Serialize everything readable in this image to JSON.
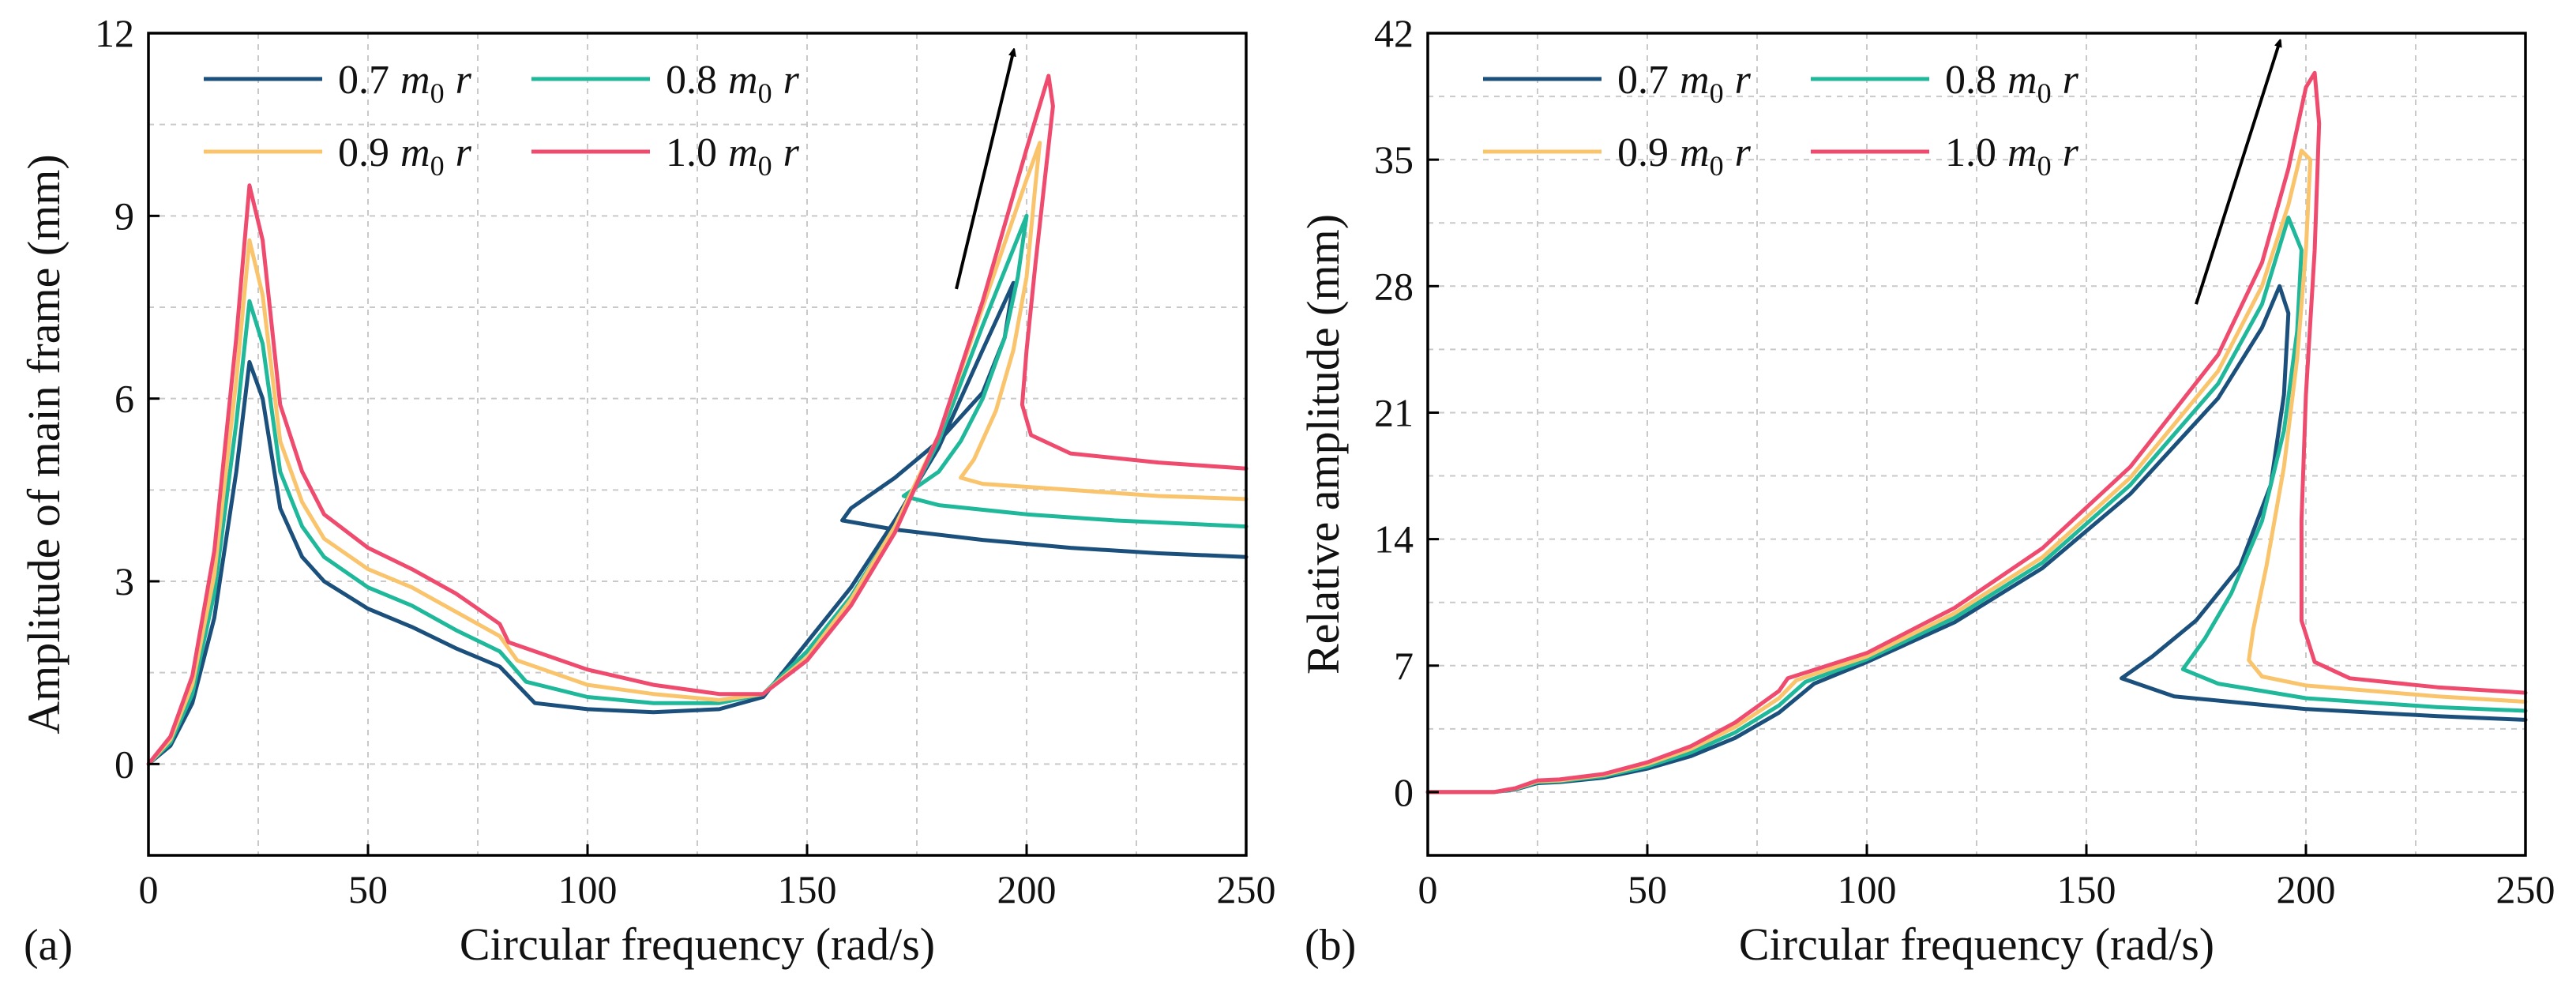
{
  "chart_data": [
    {
      "type": "line",
      "panel_label": "(a)",
      "xlabel": "Circular frequency (rad/s)",
      "ylabel": "Amplitude of main frame (mm)",
      "xlim": [
        0,
        250
      ],
      "ylim": [
        -1.5,
        12
      ],
      "xticks": [
        0,
        50,
        100,
        150,
        200,
        250
      ],
      "yticks": [
        0,
        3,
        6,
        9,
        12
      ],
      "grid": true,
      "legend": "top-left, 2 columns",
      "arrow": {
        "from": [
          184,
          7.8
        ],
        "to": [
          197,
          11.7
        ]
      },
      "series": [
        {
          "name": "0.7 m0 r",
          "coef": "0.7",
          "color": "#1b4f7c",
          "x": [
            0,
            5,
            10,
            15,
            20,
            23,
            26,
            30,
            35,
            40,
            50,
            60,
            70,
            80,
            88,
            100,
            115,
            130,
            140,
            150,
            160,
            170,
            180,
            190,
            197,
            195,
            190,
            180,
            170,
            160,
            158,
            170,
            190,
            210,
            230,
            250
          ],
          "y": [
            0,
            0.3,
            1.0,
            2.4,
            4.8,
            6.6,
            6.0,
            4.2,
            3.4,
            3.0,
            2.55,
            2.25,
            1.9,
            1.6,
            1.0,
            0.9,
            0.85,
            0.9,
            1.1,
            2.0,
            2.9,
            4.0,
            5.2,
            6.8,
            7.9,
            7.0,
            6.1,
            5.3,
            4.7,
            4.2,
            4.0,
            3.85,
            3.68,
            3.55,
            3.46,
            3.4
          ]
        },
        {
          "name": "0.8 m0 r",
          "coef": "0.8",
          "color": "#1fb89a",
          "x": [
            0,
            5,
            10,
            15,
            20,
            23,
            26,
            30,
            35,
            40,
            50,
            60,
            70,
            80,
            86,
            100,
            115,
            130,
            140,
            150,
            160,
            170,
            180,
            190,
            200,
            198,
            195,
            190,
            185,
            180,
            172,
            180,
            200,
            220,
            250
          ],
          "y": [
            0,
            0.35,
            1.15,
            2.8,
            5.6,
            7.6,
            6.9,
            4.8,
            3.9,
            3.4,
            2.9,
            2.6,
            2.2,
            1.85,
            1.35,
            1.1,
            1.0,
            1.0,
            1.15,
            1.85,
            2.75,
            3.9,
            5.3,
            7.2,
            9.0,
            8.0,
            7.0,
            6.0,
            5.3,
            4.8,
            4.4,
            4.25,
            4.1,
            4.0,
            3.9
          ]
        },
        {
          "name": "0.9 m0 r",
          "coef": "0.9",
          "color": "#f9c46b",
          "x": [
            0,
            5,
            10,
            15,
            20,
            23,
            26,
            30,
            35,
            40,
            50,
            60,
            70,
            80,
            84,
            100,
            115,
            130,
            140,
            150,
            160,
            170,
            180,
            190,
            200,
            203,
            202,
            200,
            197,
            193,
            188,
            185,
            190,
            210,
            230,
            250
          ],
          "y": [
            0,
            0.4,
            1.3,
            3.1,
            6.3,
            8.6,
            7.7,
            5.3,
            4.3,
            3.7,
            3.2,
            2.9,
            2.5,
            2.1,
            1.7,
            1.3,
            1.15,
            1.05,
            1.15,
            1.75,
            2.7,
            3.9,
            5.4,
            7.5,
            9.6,
            10.2,
            9.5,
            8.0,
            6.8,
            5.8,
            5.0,
            4.7,
            4.6,
            4.5,
            4.4,
            4.35
          ]
        },
        {
          "name": "1.0 m0 r",
          "coef": "1.0",
          "color": "#ef4b6e",
          "x": [
            0,
            5,
            10,
            15,
            20,
            23,
            26,
            30,
            35,
            40,
            50,
            60,
            70,
            80,
            82,
            100,
            115,
            130,
            140,
            150,
            160,
            170,
            180,
            190,
            200,
            205,
            206,
            204,
            202,
            200,
            199,
            201,
            210,
            230,
            250
          ],
          "y": [
            0,
            0.45,
            1.45,
            3.5,
            7.0,
            9.5,
            8.6,
            5.9,
            4.8,
            4.1,
            3.55,
            3.2,
            2.8,
            2.3,
            2.0,
            1.55,
            1.3,
            1.15,
            1.15,
            1.7,
            2.6,
            3.8,
            5.4,
            7.6,
            10.1,
            11.3,
            10.8,
            9.5,
            8.2,
            6.8,
            5.9,
            5.4,
            5.1,
            4.95,
            4.85
          ]
        }
      ]
    },
    {
      "type": "line",
      "panel_label": "(b)",
      "xlabel": "Circular frequency (rad/s)",
      "ylabel": "Relative amplitude (mm)",
      "xlim": [
        0,
        250
      ],
      "ylim": [
        -3.5,
        42
      ],
      "xticks": [
        0,
        50,
        100,
        150,
        200,
        250
      ],
      "yticks": [
        0,
        7,
        14,
        21,
        28,
        35,
        42
      ],
      "grid": true,
      "legend": "top-left, 2 columns",
      "arrow": {
        "from": [
          175,
          27
        ],
        "to": [
          194,
          41.5
        ]
      },
      "series": [
        {
          "name": "0.7 m0 r",
          "coef": "0.7",
          "color": "#1b4f7c",
          "x": [
            0,
            15,
            20,
            25,
            30,
            40,
            50,
            60,
            70,
            80,
            88,
            100,
            120,
            140,
            160,
            180,
            190,
            194,
            196,
            195,
            192,
            185,
            175,
            165,
            158,
            170,
            200,
            230,
            250
          ],
          "y": [
            0,
            0,
            0.15,
            0.5,
            0.55,
            0.8,
            1.3,
            2.0,
            3.0,
            4.4,
            6.0,
            7.2,
            9.4,
            12.4,
            16.5,
            21.8,
            25.7,
            28.0,
            26.5,
            22.0,
            17.0,
            12.5,
            9.5,
            7.5,
            6.3,
            5.3,
            4.6,
            4.2,
            4.0
          ]
        },
        {
          "name": "0.8 m0 r",
          "coef": "0.8",
          "color": "#1fb89a",
          "x": [
            0,
            15,
            20,
            25,
            30,
            40,
            50,
            60,
            70,
            80,
            86,
            100,
            120,
            140,
            160,
            180,
            190,
            196,
            199,
            198,
            195,
            190,
            183,
            177,
            172,
            180,
            200,
            230,
            250
          ],
          "y": [
            0,
            0,
            0.18,
            0.55,
            0.6,
            0.88,
            1.42,
            2.2,
            3.3,
            4.8,
            6.1,
            7.35,
            9.65,
            12.7,
            17.0,
            22.6,
            27.0,
            31.8,
            30.0,
            25.5,
            20.0,
            15.0,
            11.0,
            8.5,
            6.8,
            6.0,
            5.2,
            4.7,
            4.5
          ]
        },
        {
          "name": "0.9 m0 r",
          "coef": "0.9",
          "color": "#f9c46b",
          "x": [
            0,
            15,
            20,
            25,
            30,
            40,
            50,
            60,
            70,
            80,
            84,
            100,
            120,
            140,
            160,
            180,
            190,
            196,
            199,
            201,
            200,
            198,
            195,
            191,
            188,
            187,
            190,
            200,
            230,
            250
          ],
          "y": [
            0,
            0,
            0.2,
            0.6,
            0.65,
            0.95,
            1.55,
            2.4,
            3.6,
            5.2,
            6.2,
            7.5,
            9.9,
            13.0,
            17.4,
            23.3,
            28.0,
            32.5,
            35.5,
            35.0,
            30.0,
            24.0,
            18.0,
            12.5,
            9.0,
            7.3,
            6.4,
            5.9,
            5.3,
            5.0
          ]
        },
        {
          "name": "1.0 m0 r",
          "coef": "1.0",
          "color": "#ef4b6e",
          "x": [
            0,
            15,
            20,
            25,
            30,
            40,
            50,
            60,
            70,
            80,
            82,
            100,
            120,
            140,
            160,
            180,
            190,
            196,
            200,
            202,
            203,
            202,
            200,
            199,
            199,
            202,
            210,
            230,
            250
          ],
          "y": [
            0,
            0,
            0.22,
            0.65,
            0.7,
            1.0,
            1.65,
            2.55,
            3.85,
            5.6,
            6.3,
            7.7,
            10.2,
            13.5,
            18.0,
            24.2,
            29.3,
            34.5,
            39.0,
            39.8,
            37.0,
            30.0,
            22.0,
            15.0,
            9.5,
            7.2,
            6.3,
            5.8,
            5.5
          ]
        }
      ]
    }
  ]
}
